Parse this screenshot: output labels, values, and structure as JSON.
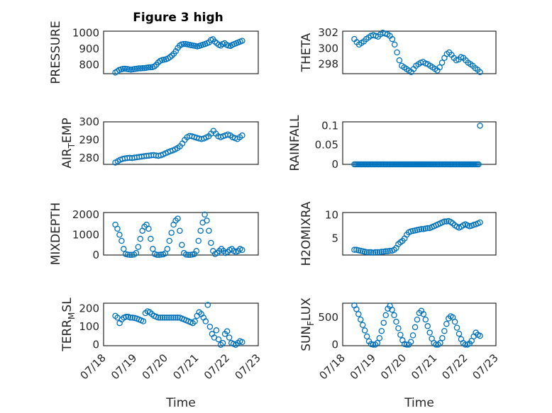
{
  "figure": {
    "title": "Figure 3 high"
  },
  "colors": {
    "marker": "#0072BD",
    "axis": "#262626",
    "grid": "#b0b0b0"
  },
  "chart_data": [
    {
      "id": "pressure",
      "type": "scatter",
      "ylabel": "PRESSURE",
      "ylabel_sub": "",
      "ylim": [
        745,
        1010
      ],
      "yticks": [
        800,
        900,
        1000
      ],
      "ytick_labels": [
        "800",
        "900",
        "1000"
      ],
      "xticks": [
        0,
        1,
        2,
        3,
        4,
        5
      ],
      "xtick_labels": [],
      "xlabel": "",
      "grid": true,
      "series": [
        {
          "x_start": 0.38,
          "x_end": 4.48,
          "y": [
            752,
            760,
            768,
            772,
            775,
            776,
            774,
            772,
            770,
            772,
            774,
            776,
            778,
            778,
            779,
            780,
            782,
            784,
            785,
            786,
            790,
            800,
            815,
            825,
            830,
            832,
            835,
            840,
            848,
            858,
            870,
            885,
            905,
            920,
            928,
            930,
            930,
            928,
            925,
            922,
            920,
            918,
            915,
            918,
            922,
            926,
            930,
            935,
            940,
            955,
            960,
            945,
            935,
            925,
            920,
            930,
            935,
            925,
            920,
            918,
            925,
            930,
            935,
            940,
            945,
            950
          ]
        }
      ]
    },
    {
      "id": "theta",
      "type": "scatter",
      "ylabel": "THETA",
      "ylabel_sub": "",
      "ylim": [
        296.8,
        302.2
      ],
      "yticks": [
        298,
        300,
        302
      ],
      "ytick_labels": [
        "298",
        "300",
        "302"
      ],
      "xticks": [
        0,
        1,
        2,
        3,
        4,
        5
      ],
      "xtick_labels": [],
      "xlabel": "",
      "grid": true,
      "series": [
        {
          "x_start": 0.38,
          "x_end": 4.48,
          "y": [
            301.2,
            300.8,
            300.5,
            300.7,
            300.9,
            301.2,
            301.4,
            301.6,
            301.7,
            301.6,
            301.5,
            301.8,
            302.0,
            301.9,
            301.8,
            301.6,
            301.2,
            300.5,
            299.5,
            298.5,
            297.8,
            297.6,
            297.4,
            297.2,
            297.0,
            297.4,
            297.8,
            298.0,
            298.2,
            298.3,
            298.1,
            298.0,
            297.8,
            297.6,
            297.4,
            297.2,
            297.6,
            298.2,
            298.8,
            299.3,
            299.5,
            299.2,
            298.8,
            298.5,
            298.6,
            298.9,
            298.8,
            298.5,
            298.2,
            298.0,
            297.8,
            297.5,
            297.3,
            297.0
          ]
        }
      ]
    },
    {
      "id": "air_temp",
      "type": "scatter",
      "ylabel": "AIR",
      "ylabel_sub": "T",
      "ylabel_suffix": "EMP",
      "ylim": [
        276.5,
        300
      ],
      "yticks": [
        280,
        290,
        300
      ],
      "ytick_labels": [
        "280",
        "290",
        "300"
      ],
      "xticks": [
        0,
        1,
        2,
        3,
        4,
        5
      ],
      "xtick_labels": [],
      "xlabel": "",
      "grid": true,
      "series": [
        {
          "x_start": 0.38,
          "x_end": 4.48,
          "y": [
            277.5,
            278.2,
            279.0,
            279.5,
            279.8,
            280.0,
            280.1,
            280.0,
            280.2,
            280.4,
            280.6,
            280.8,
            281.0,
            281.2,
            281.3,
            281.5,
            281.6,
            281.4,
            281.2,
            281.5,
            282.0,
            282.6,
            283.2,
            283.8,
            284.2,
            284.8,
            285.5,
            286.5,
            288.0,
            290.0,
            291.5,
            292.2,
            292.0,
            291.6,
            291.2,
            290.8,
            290.5,
            290.8,
            291.4,
            292.0,
            293.5,
            295.0,
            293.5,
            292.0,
            291.5,
            292.0,
            292.5,
            293.0,
            292.5,
            291.5,
            291.0,
            290.5,
            291.5,
            292.5
          ]
        }
      ]
    },
    {
      "id": "rainfall",
      "type": "scatter",
      "ylabel": "RAINFALL",
      "ylabel_sub": "",
      "ylim": [
        0,
        0.11
      ],
      "yticks": [
        0,
        0.05,
        0.1
      ],
      "ytick_labels": [
        "0",
        "0.05",
        "0.1"
      ],
      "xticks": [
        0,
        1,
        2,
        3,
        4,
        5
      ],
      "xtick_labels": [],
      "xlabel": "",
      "grid": true,
      "series": [
        {
          "x_start": 0.38,
          "x_end": 4.48,
          "y": [
            0,
            0,
            0,
            0,
            0,
            0,
            0,
            0,
            0,
            0,
            0,
            0,
            0,
            0,
            0,
            0,
            0,
            0,
            0,
            0,
            0,
            0,
            0,
            0,
            0,
            0,
            0,
            0,
            0,
            0,
            0,
            0,
            0,
            0,
            0,
            0,
            0,
            0,
            0,
            0,
            0,
            0,
            0,
            0,
            0,
            0,
            0,
            0,
            0,
            0,
            0,
            0,
            0,
            0,
            0,
            0,
            0,
            0,
            0,
            0,
            0,
            0,
            0,
            0,
            0,
            0,
            0,
            0,
            0,
            0,
            0,
            0,
            0,
            0,
            0,
            0,
            0,
            0,
            0,
            0,
            0,
            0,
            0,
            0,
            0,
            0,
            0,
            0,
            0,
            0.1
          ]
        }
      ]
    },
    {
      "id": "mixdepth",
      "type": "scatter",
      "ylabel": "MIXDEPTH",
      "ylabel_sub": "",
      "ylim": [
        0,
        2100
      ],
      "yticks": [
        0,
        1000,
        2000
      ],
      "ytick_labels": [
        "0",
        "1000",
        "2000"
      ],
      "xticks": [
        0,
        1,
        2,
        3,
        4,
        5
      ],
      "xtick_labels": [],
      "xlabel": "",
      "grid": true,
      "series": [
        {
          "x_start": 0.38,
          "x_end": 4.48,
          "y": [
            1500,
            1300,
            1000,
            700,
            300,
            50,
            20,
            10,
            10,
            20,
            100,
            400,
            800,
            1200,
            1400,
            1500,
            1300,
            800,
            300,
            50,
            10,
            10,
            20,
            30,
            80,
            300,
            700,
            1100,
            1500,
            1700,
            1800,
            1200,
            500,
            100,
            20,
            10,
            10,
            20,
            50,
            200,
            700,
            1200,
            1600,
            2000,
            1700,
            1200,
            600,
            200,
            50,
            100,
            200,
            300,
            200,
            100,
            150,
            250,
            300,
            200,
            150,
            200,
            300,
            250
          ]
        }
      ]
    },
    {
      "id": "h2omixra",
      "type": "scatter",
      "ylabel": "H2OMIXRA",
      "ylabel_sub": "",
      "ylim": [
        1.5,
        10.5
      ],
      "yticks": [
        5,
        10
      ],
      "ytick_labels": [
        "5",
        "10"
      ],
      "xticks": [
        0,
        1,
        2,
        3,
        4,
        5
      ],
      "xtick_labels": [],
      "xlabel": "",
      "grid": true,
      "series": [
        {
          "x_start": 0.38,
          "x_end": 4.48,
          "y": [
            2.6,
            2.6,
            2.5,
            2.4,
            2.3,
            2.2,
            2.1,
            2.1,
            2.1,
            2.0,
            2.1,
            2.1,
            2.1,
            2.2,
            2.2,
            2.3,
            2.3,
            2.4,
            2.4,
            2.6,
            3.0,
            3.8,
            4.2,
            4.5,
            5.0,
            5.8,
            6.3,
            6.5,
            6.6,
            6.7,
            6.8,
            6.9,
            7.0,
            7.0,
            7.1,
            7.2,
            7.2,
            7.4,
            7.6,
            7.8,
            8.0,
            8.2,
            8.4,
            8.6,
            8.6,
            8.7,
            8.5,
            8.2,
            7.8,
            7.5,
            7.3,
            7.5,
            7.8,
            8.0,
            7.8,
            7.6,
            7.7,
            7.9,
            8.0,
            8.2,
            8.4
          ]
        }
      ]
    },
    {
      "id": "terr_msl",
      "type": "scatter",
      "ylabel": "TERR",
      "ylabel_sub": "M",
      "ylabel_suffix": "SL",
      "ylim": [
        -5,
        230
      ],
      "yticks": [
        0,
        100,
        200
      ],
      "ytick_labels": [
        "0",
        "100",
        "200"
      ],
      "xticks": [
        0,
        1,
        2,
        3,
        4,
        5
      ],
      "xtick_labels": [
        "07/18",
        "07/19",
        "07/20",
        "07/21",
        "07/22",
        "07/23"
      ],
      "xlabel": "Time",
      "grid": true,
      "series": [
        {
          "x_start": 0.38,
          "x_end": 4.48,
          "y": [
            160,
            150,
            120,
            140,
            150,
            155,
            155,
            150,
            150,
            148,
            145,
            140,
            135,
            130,
            175,
            185,
            180,
            170,
            160,
            155,
            150,
            150,
            150,
            150,
            150,
            150,
            150,
            150,
            150,
            150,
            150,
            145,
            140,
            135,
            130,
            125,
            120,
            130,
            160,
            180,
            170,
            150,
            130,
            220,
            100,
            60,
            40,
            80,
            30,
            0,
            10,
            60,
            75,
            40,
            10,
            5,
            0,
            10,
            20,
            15
          ]
        }
      ]
    },
    {
      "id": "sun_flux",
      "type": "scatter",
      "ylabel": "SUN",
      "ylabel_sub": "F",
      "ylabel_suffix": "LUX",
      "ylim": [
        -20,
        760
      ],
      "yticks": [
        0,
        500
      ],
      "ytick_labels": [
        "0",
        "500"
      ],
      "xticks": [
        0,
        1,
        2,
        3,
        4,
        5
      ],
      "xtick_labels": [
        "07/18",
        "07/19",
        "07/20",
        "07/21",
        "07/22",
        "07/23"
      ],
      "xlabel": "Time",
      "grid": true,
      "series": [
        {
          "x_start": 0.38,
          "x_end": 4.48,
          "y": [
            720,
            650,
            560,
            460,
            360,
            260,
            150,
            60,
            10,
            0,
            0,
            30,
            120,
            250,
            400,
            540,
            660,
            710,
            640,
            540,
            420,
            300,
            180,
            80,
            10,
            0,
            0,
            50,
            170,
            320,
            460,
            580,
            620,
            560,
            460,
            340,
            220,
            110,
            30,
            0,
            0,
            30,
            120,
            250,
            380,
            480,
            520,
            500,
            420,
            310,
            200,
            100,
            30,
            0,
            0,
            20,
            70,
            150,
            220,
            180,
            160
          ]
        }
      ]
    }
  ]
}
